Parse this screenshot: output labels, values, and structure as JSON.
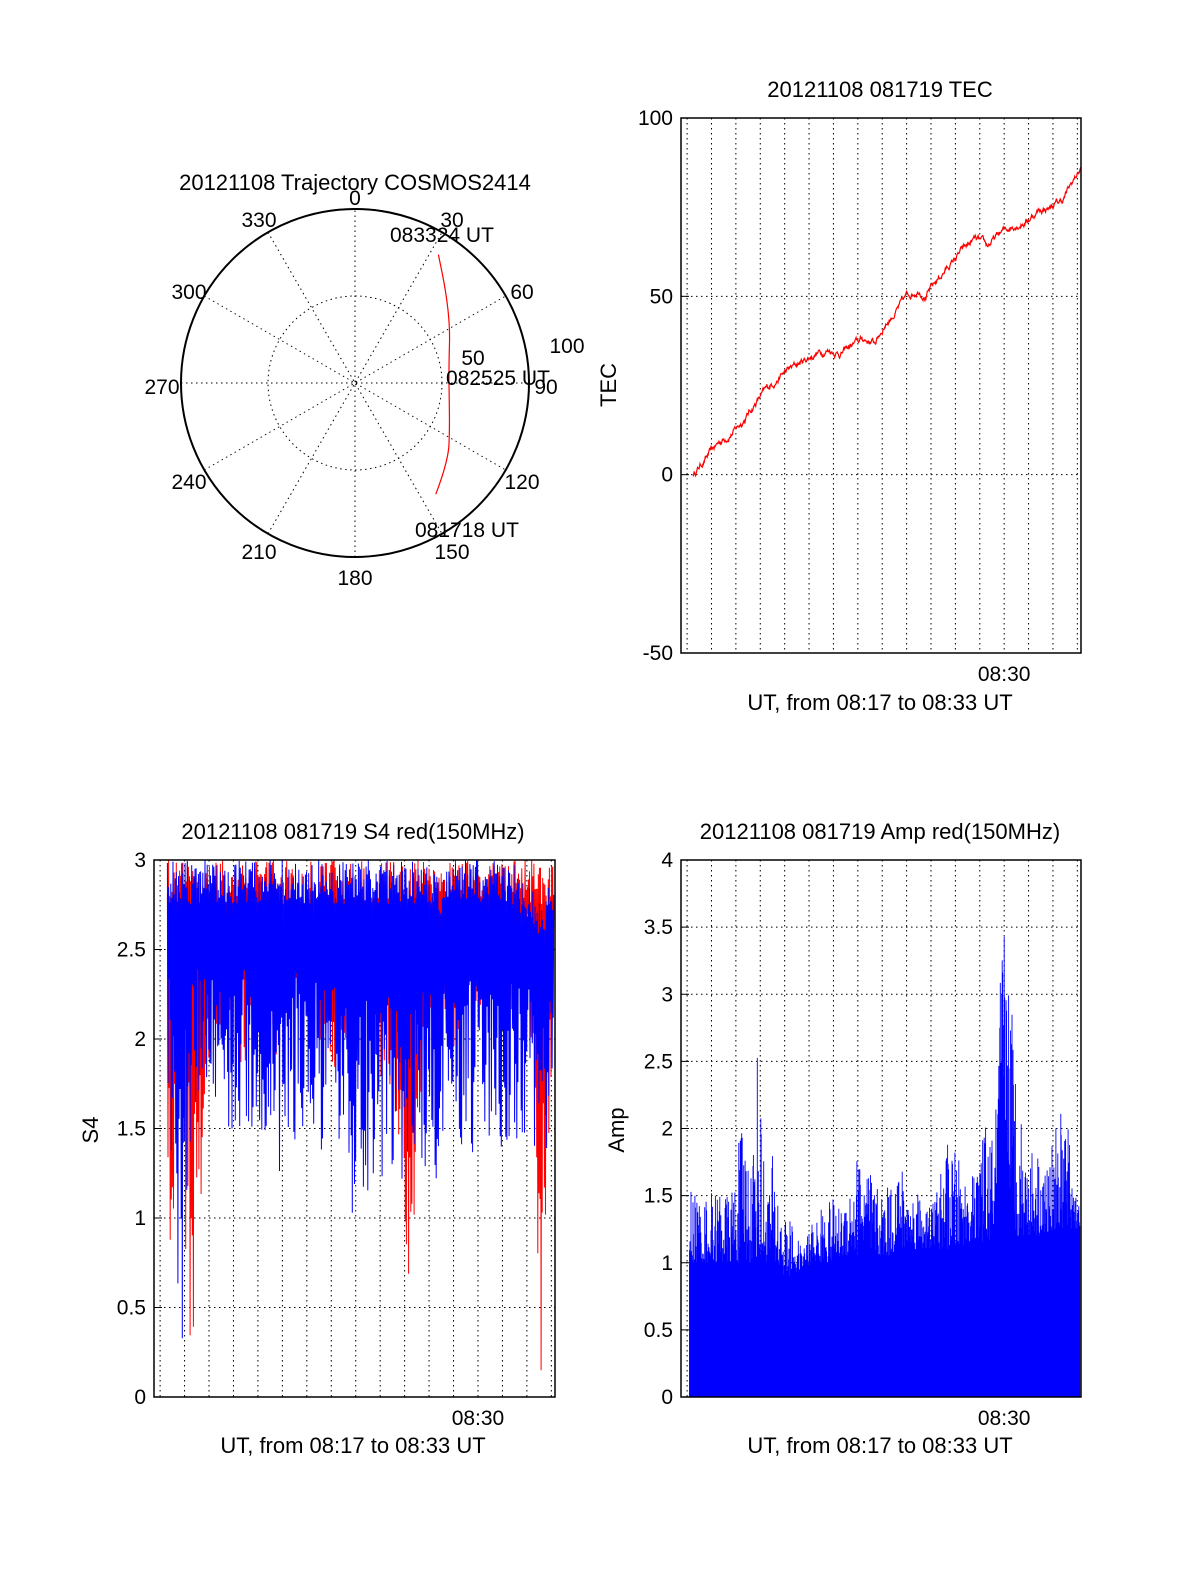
{
  "colors": {
    "red": "#ff0000",
    "blue": "#0000ff",
    "axis": "#000000"
  },
  "chart_data": [
    {
      "type": "polar",
      "title": "20121108 Trajectory COSMOS2414",
      "angle_labels": [
        "0",
        "30",
        "60",
        "90",
        "120",
        "150",
        "180",
        "210",
        "240",
        "270",
        "300",
        "330"
      ],
      "radial_labels": [
        "50",
        "100"
      ],
      "radial_range": [
        0,
        100
      ],
      "grid": true,
      "series": [
        {
          "color": "red",
          "points": [
            {
              "az": 144,
              "r": 79
            },
            {
              "az": 130,
              "r": 70
            },
            {
              "az": 115,
              "r": 60
            },
            {
              "az": 100,
              "r": 55
            },
            {
              "az": 88,
              "r": 54
            },
            {
              "az": 75,
              "r": 56
            },
            {
              "az": 60,
              "r": 63
            },
            {
              "az": 45,
              "r": 74
            },
            {
              "az": 33,
              "r": 88
            }
          ]
        }
      ],
      "annotations": [
        {
          "text": "083324 UT",
          "az": 33,
          "r": 88
        },
        {
          "text": "082525 UT",
          "az": 88,
          "r": 54
        },
        {
          "text": "081718 UT",
          "az": 144,
          "r": 79
        }
      ]
    },
    {
      "type": "line",
      "title": "20121108 081719 TEC",
      "ylabel": "TEC",
      "xlabel": "UT, from 08:17 to 08:33 UT",
      "xtick_labels": [
        {
          "t": 30,
          "label": "08:30"
        }
      ],
      "xlim": [
        16.75,
        33.15
      ],
      "ylim": [
        -50,
        100
      ],
      "yticks": [
        -50,
        0,
        50,
        100
      ],
      "grid": true,
      "series": [
        {
          "color": "red",
          "t": [
            17.25,
            17.7,
            18.3,
            18.9,
            19.4,
            19.9,
            20.4,
            20.9,
            21.3,
            21.8,
            22.3,
            22.8,
            23.3,
            23.7,
            24.2,
            24.7,
            25.1,
            25.6,
            26.0,
            26.5,
            26.8,
            27.3,
            27.8,
            28.3,
            28.8,
            29.3,
            29.9,
            30.4,
            30.9,
            31.4,
            31.9,
            32.4,
            32.8,
            33.15
          ],
          "tec": [
            0,
            4,
            9,
            12,
            16,
            21,
            25,
            28,
            30,
            32,
            34,
            35,
            34,
            36,
            38,
            37,
            42,
            46,
            50,
            52,
            50,
            55,
            59,
            63,
            66,
            64,
            68,
            70,
            71,
            74,
            75,
            77,
            82,
            86
          ]
        }
      ]
    },
    {
      "type": "line",
      "title": "20121108 081719 S4 red(150MHz)",
      "ylabel": "S4",
      "xlabel": "UT, from 08:17 to 08:33 UT",
      "xtick_labels": [
        {
          "t": 30,
          "label": "08:30"
        }
      ],
      "xlim": [
        16.75,
        33.15
      ],
      "ylim": [
        0,
        3
      ],
      "yticks": [
        0,
        0.5,
        1,
        1.5,
        2,
        2.5,
        3
      ],
      "grid": true,
      "series": [
        {
          "color": "red",
          "t": [
            17.3,
            17.8,
            18.3,
            18.9,
            19.4,
            20.0,
            20.6,
            21.2,
            21.8,
            22.4,
            23.0,
            23.6,
            24.2,
            24.8,
            25.4,
            26.0,
            26.6,
            27.2,
            27.8,
            28.4,
            29.0,
            29.6,
            30.2,
            30.8,
            31.4,
            32.0,
            32.6,
            33.1
          ],
          "min": [
            0.0,
            1.6,
            0.0,
            1.8,
            1.9,
            2.0,
            1.7,
            2.1,
            1.5,
            2.2,
            1.9,
            2.0,
            1.6,
            2.2,
            2.0,
            1.6,
            1.4,
            0.6,
            1.7,
            2.1,
            1.9,
            2.3,
            2.0,
            2.2,
            2.1,
            2.4,
            0.0,
            2.3
          ],
          "max": [
            3,
            3,
            3,
            3,
            3,
            3,
            3,
            3,
            3,
            3,
            3,
            3,
            3,
            3,
            3,
            3,
            3,
            3,
            3,
            3,
            3,
            3,
            3,
            3,
            3,
            3,
            3,
            3
          ]
        },
        {
          "color": "blue",
          "t": [
            17.3,
            17.8,
            18.3,
            18.9,
            19.4,
            20.0,
            20.6,
            21.2,
            21.8,
            22.4,
            23.0,
            23.6,
            24.2,
            24.8,
            25.4,
            26.0,
            26.6,
            27.2,
            27.8,
            28.4,
            29.0,
            29.6,
            30.2,
            30.8,
            31.4,
            32.0,
            32.6,
            33.1
          ],
          "min": [
            1.7,
            0.0,
            1.5,
            1.6,
            1.6,
            1.4,
            1.5,
            1.3,
            1.2,
            1.4,
            1.5,
            1.2,
            1.3,
            1.0,
            1.1,
            1.2,
            1.1,
            1.3,
            1.2,
            1.2,
            1.4,
            1.3,
            1.4,
            1.3,
            1.4,
            1.4,
            1.3,
            1.3
          ],
          "max": [
            3,
            3,
            3,
            3,
            3,
            3,
            3,
            3,
            3,
            3,
            3,
            3,
            3,
            3,
            3,
            3,
            3,
            3,
            3,
            2.9,
            3,
            3,
            3,
            3,
            3,
            2.9,
            2.8,
            2.9
          ]
        }
      ]
    },
    {
      "type": "bar",
      "title": "20121108 081719 Amp red(150MHz)",
      "ylabel": "Amp",
      "xlabel": "UT, from 08:17 to 08:33 UT",
      "xtick_labels": [
        {
          "t": 30,
          "label": "08:30"
        }
      ],
      "xlim": [
        16.75,
        33.15
      ],
      "ylim": [
        0,
        4
      ],
      "yticks": [
        0,
        0.5,
        1,
        1.5,
        2,
        2.5,
        3,
        3.5,
        4
      ],
      "grid": true,
      "series": [
        {
          "color": "blue",
          "t": [
            17.1,
            17.5,
            17.9,
            18.3,
            18.7,
            19.0,
            19.3,
            19.6,
            19.9,
            20.2,
            20.5,
            20.9,
            21.3,
            21.7,
            22.1,
            22.5,
            22.9,
            23.3,
            23.7,
            24.1,
            24.5,
            24.9,
            25.3,
            25.7,
            26.1,
            26.5,
            26.9,
            27.3,
            27.7,
            28.1,
            28.5,
            28.9,
            29.3,
            29.6,
            29.8,
            30.0,
            30.2,
            30.5,
            30.9,
            31.3,
            31.7,
            32.1,
            32.5,
            32.9,
            33.1
          ],
          "amp": [
            1.6,
            1.5,
            1.5,
            1.6,
            1.5,
            1.7,
            2.2,
            1.7,
            2.7,
            1.6,
            1.8,
            1.4,
            1.3,
            1.1,
            1.3,
            1.4,
            1.5,
            1.4,
            1.7,
            1.9,
            1.7,
            1.5,
            1.6,
            1.8,
            1.5,
            1.6,
            1.4,
            1.6,
            1.9,
            1.8,
            1.6,
            1.7,
            2.1,
            1.9,
            3.0,
            3.7,
            3.3,
            2.5,
            1.8,
            1.9,
            1.7,
            2.0,
            2.2,
            1.6,
            1.4
          ],
          "floor": [
            1.0,
            1.0,
            1.0,
            1.0,
            1.0,
            1.0,
            1.0,
            1.0,
            1.0,
            1.0,
            1.0,
            0.9,
            0.9,
            0.95,
            1.0,
            1.0,
            1.0,
            1.05,
            1.05,
            1.05,
            1.05,
            1.05,
            1.05,
            1.1,
            1.1,
            1.1,
            1.1,
            1.1,
            1.1,
            1.1,
            1.15,
            1.15,
            1.15,
            1.15,
            1.5,
            2.0,
            1.6,
            1.2,
            1.2,
            1.2,
            1.2,
            1.25,
            1.25,
            1.25,
            1.25
          ]
        }
      ]
    }
  ]
}
